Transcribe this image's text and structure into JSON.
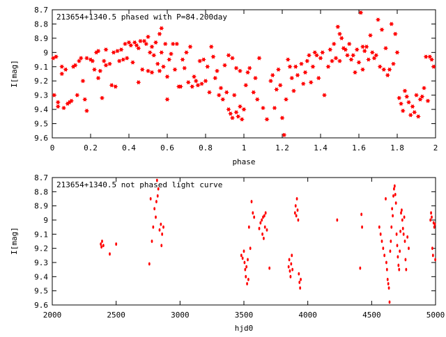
{
  "chart_data": [
    {
      "type": "scatter",
      "title": "213654+1340.5 phased with P=84.200day",
      "xlabel": "phase",
      "ylabel": "I[mag]",
      "xlim": [
        0,
        2
      ],
      "ylim": [
        9.6,
        8.7
      ],
      "y_inverted": true,
      "grid": false,
      "marker": "star",
      "color": "#ff0000",
      "x_ticks": [
        0,
        0.2,
        0.4,
        0.6,
        0.8,
        1,
        1.2,
        1.4,
        1.6,
        1.8,
        2
      ],
      "x_tick_labels": [
        "0",
        "0.2",
        "0.4",
        "0.6",
        "0.8",
        "1",
        "1.2",
        "1.4",
        "1.6",
        "1.8",
        "2"
      ],
      "y_ticks": [
        8.7,
        8.8,
        8.9,
        9,
        9.1,
        9.2,
        9.3,
        9.4,
        9.5,
        9.6
      ],
      "y_tick_labels": [
        "8.7",
        "8.8",
        "8.9",
        "9",
        "9.1",
        "9.2",
        "9.3",
        "9.4",
        "9.5",
        "9.6"
      ],
      "points": [
        [
          0.005,
          9.04
        ],
        [
          0.02,
          9.03
        ],
        [
          0.01,
          9.3
        ],
        [
          0.03,
          9.35
        ],
        [
          0.03,
          9.38
        ],
        [
          0.05,
          9.1
        ],
        [
          0.05,
          9.15
        ],
        [
          0.06,
          9.39
        ],
        [
          0.07,
          9.12
        ],
        [
          0.08,
          9.36
        ],
        [
          0.09,
          9.35
        ],
        [
          0.1,
          9.34
        ],
        [
          0.11,
          9.1
        ],
        [
          0.12,
          9.09
        ],
        [
          0.13,
          9.3
        ],
        [
          0.14,
          9.06
        ],
        [
          0.15,
          9.04
        ],
        [
          0.16,
          9.2
        ],
        [
          0.17,
          9.33
        ],
        [
          0.18,
          9.04
        ],
        [
          0.18,
          9.41
        ],
        [
          0.2,
          9.05
        ],
        [
          0.21,
          9.06
        ],
        [
          0.22,
          9.12
        ],
        [
          0.23,
          9.0
        ],
        [
          0.24,
          8.99
        ],
        [
          0.24,
          9.18
        ],
        [
          0.25,
          9.13
        ],
        [
          0.26,
          9.32
        ],
        [
          0.27,
          9.06
        ],
        [
          0.28,
          9.09
        ],
        [
          0.28,
          8.98
        ],
        [
          0.3,
          9.08
        ],
        [
          0.31,
          9.23
        ],
        [
          0.32,
          9.0
        ],
        [
          0.33,
          9.24
        ],
        [
          0.34,
          8.99
        ],
        [
          0.35,
          9.06
        ],
        [
          0.36,
          8.98
        ],
        [
          0.37,
          9.05
        ],
        [
          0.38,
          8.94
        ],
        [
          0.39,
          9.04
        ],
        [
          0.4,
          8.93
        ],
        [
          0.41,
          8.95
        ],
        [
          0.42,
          9.07
        ],
        [
          0.43,
          8.93
        ],
        [
          0.44,
          8.95
        ],
        [
          0.45,
          8.97
        ],
        [
          0.45,
          9.21
        ],
        [
          0.46,
          8.92
        ],
        [
          0.47,
          9.12
        ],
        [
          0.48,
          8.92
        ],
        [
          0.49,
          8.94
        ],
        [
          0.5,
          8.89
        ],
        [
          0.5,
          9.13
        ],
        [
          0.51,
          9.0
        ],
        [
          0.52,
          9.14
        ],
        [
          0.52,
          8.96
        ],
        [
          0.53,
          9.02
        ],
        [
          0.54,
          8.93
        ],
        [
          0.55,
          9.08
        ],
        [
          0.56,
          9.13
        ],
        [
          0.56,
          8.87
        ],
        [
          0.57,
          9.0
        ],
        [
          0.57,
          8.83
        ],
        [
          0.58,
          9.1
        ],
        [
          0.59,
          8.94
        ],
        [
          0.6,
          9.17
        ],
        [
          0.6,
          9.33
        ],
        [
          0.61,
          9.05
        ],
        [
          0.62,
          9.01
        ],
        [
          0.63,
          8.94
        ],
        [
          0.64,
          9.12
        ],
        [
          0.65,
          8.94
        ],
        [
          0.66,
          9.24
        ],
        [
          0.67,
          9.24
        ],
        [
          0.68,
          9.05
        ],
        [
          0.69,
          9.11
        ],
        [
          0.7,
          9.0
        ],
        [
          0.71,
          9.21
        ],
        [
          0.72,
          8.96
        ],
        [
          0.73,
          9.24
        ],
        [
          0.74,
          9.17
        ],
        [
          0.75,
          9.2
        ],
        [
          0.76,
          9.23
        ],
        [
          0.77,
          9.06
        ],
        [
          0.78,
          9.22
        ],
        [
          0.79,
          9.05
        ],
        [
          0.8,
          9.2
        ],
        [
          0.81,
          9.1
        ],
        [
          0.82,
          9.28
        ],
        [
          0.83,
          8.96
        ],
        [
          0.84,
          9.03
        ],
        [
          0.85,
          9.18
        ],
        [
          0.86,
          9.13
        ],
        [
          0.87,
          9.3
        ],
        [
          0.88,
          9.25
        ],
        [
          0.89,
          9.33
        ],
        [
          0.9,
          9.09
        ],
        [
          0.91,
          9.28
        ],
        [
          0.92,
          9.02
        ],
        [
          0.92,
          9.4
        ],
        [
          0.93,
          9.43
        ],
        [
          0.94,
          9.04
        ],
        [
          0.94,
          9.46
        ],
        [
          0.95,
          9.3
        ],
        [
          0.96,
          9.42
        ],
        [
          0.96,
          9.11
        ],
        [
          0.97,
          9.45
        ],
        [
          0.98,
          9.38
        ],
        [
          0.98,
          9.13
        ],
        [
          0.99,
          9.47
        ],
        [
          1.0,
          9.4
        ],
        [
          1.01,
          9.23
        ],
        [
          1.02,
          9.14
        ],
        [
          1.03,
          9.11
        ],
        [
          1.05,
          9.28
        ],
        [
          1.06,
          9.18
        ],
        [
          1.07,
          9.33
        ],
        [
          1.08,
          9.04
        ],
        [
          1.1,
          9.39
        ],
        [
          1.12,
          9.47
        ],
        [
          1.14,
          9.2
        ],
        [
          1.15,
          9.16
        ],
        [
          1.16,
          9.39
        ],
        [
          1.17,
          9.26
        ],
        [
          1.18,
          9.12
        ],
        [
          1.19,
          9.23
        ],
        [
          1.2,
          9.46
        ],
        [
          1.21,
          9.58
        ],
        [
          1.22,
          9.33
        ],
        [
          1.23,
          9.05
        ],
        [
          1.24,
          9.1
        ],
        [
          1.25,
          9.18
        ],
        [
          1.26,
          9.27
        ],
        [
          1.27,
          9.1
        ],
        [
          1.28,
          9.16
        ],
        [
          1.3,
          9.08
        ],
        [
          1.31,
          9.22
        ],
        [
          1.32,
          9.14
        ],
        [
          1.33,
          9.06
        ],
        [
          1.34,
          9.02
        ],
        [
          1.35,
          9.21
        ],
        [
          1.36,
          9.1
        ],
        [
          1.37,
          9.0
        ],
        [
          1.38,
          9.02
        ],
        [
          1.39,
          9.18
        ],
        [
          1.4,
          9.04
        ],
        [
          1.41,
          9.0
        ],
        [
          1.42,
          9.3
        ],
        [
          1.44,
          9.1
        ],
        [
          1.45,
          8.98
        ],
        [
          1.46,
          9.06
        ],
        [
          1.47,
          8.94
        ],
        [
          1.48,
          9.04
        ],
        [
          1.49,
          8.82
        ],
        [
          1.5,
          8.87
        ],
        [
          1.5,
          9.06
        ],
        [
          1.51,
          8.9
        ],
        [
          1.52,
          8.97
        ],
        [
          1.53,
          8.98
        ],
        [
          1.54,
          9.02
        ],
        [
          1.55,
          8.94
        ],
        [
          1.56,
          9.05
        ],
        [
          1.57,
          9.02
        ],
        [
          1.58,
          9.14
        ],
        [
          1.59,
          8.98
        ],
        [
          1.6,
          9.07
        ],
        [
          1.61,
          8.72
        ],
        [
          1.62,
          8.96
        ],
        [
          1.62,
          9.12
        ],
        [
          1.63,
          8.99
        ],
        [
          1.64,
          8.96
        ],
        [
          1.65,
          9.05
        ],
        [
          1.66,
          8.88
        ],
        [
          1.67,
          9.0
        ],
        [
          1.68,
          9.04
        ],
        [
          1.69,
          9.02
        ],
        [
          1.7,
          8.77
        ],
        [
          1.71,
          9.1
        ],
        [
          1.72,
          8.84
        ],
        [
          1.73,
          9.12
        ],
        [
          1.74,
          8.97
        ],
        [
          1.75,
          9.16
        ],
        [
          1.76,
          9.12
        ],
        [
          1.77,
          8.8
        ],
        [
          1.78,
          9.08
        ],
        [
          1.79,
          8.87
        ],
        [
          1.8,
          9.0
        ],
        [
          1.81,
          9.32
        ],
        [
          1.82,
          9.36
        ],
        [
          1.83,
          9.41
        ],
        [
          1.84,
          9.27
        ],
        [
          1.85,
          9.31
        ],
        [
          1.86,
          9.35
        ],
        [
          1.87,
          9.44
        ],
        [
          1.88,
          9.38
        ],
        [
          1.89,
          9.42
        ],
        [
          1.9,
          9.3
        ],
        [
          1.91,
          9.45
        ],
        [
          1.92,
          9.33
        ],
        [
          1.93,
          9.31
        ],
        [
          1.94,
          9.25
        ],
        [
          1.95,
          9.03
        ],
        [
          1.96,
          9.34
        ],
        [
          1.97,
          9.03
        ],
        [
          1.98,
          9.05
        ],
        [
          1.99,
          9.1
        ]
      ]
    },
    {
      "type": "scatter",
      "title": "213654+1340.5 not phased light curve",
      "xlabel": "hjd0",
      "ylabel": "I[mag]",
      "xlim": [
        2000,
        5000
      ],
      "ylim": [
        9.6,
        8.7
      ],
      "y_inverted": true,
      "grid": false,
      "marker": "dot",
      "color": "#ff0000",
      "x_ticks": [
        2000,
        2500,
        3000,
        3500,
        4000,
        4500,
        5000
      ],
      "x_tick_labels": [
        "2000",
        "2500",
        "3000",
        "3500",
        "4000",
        "4500",
        "5000"
      ],
      "y_ticks": [
        8.7,
        8.8,
        8.9,
        9,
        9.1,
        9.2,
        9.3,
        9.4,
        9.5,
        9.6
      ],
      "y_tick_labels": [
        "8.7",
        "8.8",
        "8.9",
        "9",
        "9.1",
        "9.2",
        "9.3",
        "9.4",
        "9.5",
        "9.6"
      ],
      "points": [
        [
          2380,
          9.17
        ],
        [
          2385,
          9.19
        ],
        [
          2390,
          9.15
        ],
        [
          2400,
          9.18
        ],
        [
          2450,
          9.24
        ],
        [
          2500,
          9.17
        ],
        [
          2760,
          9.31
        ],
        [
          2770,
          8.85
        ],
        [
          2780,
          9.15
        ],
        [
          2790,
          9.05
        ],
        [
          2800,
          8.92
        ],
        [
          2810,
          8.98
        ],
        [
          2815,
          8.87
        ],
        [
          2820,
          8.72
        ],
        [
          2825,
          8.83
        ],
        [
          2830,
          8.78
        ],
        [
          2840,
          9.07
        ],
        [
          2850,
          9.03
        ],
        [
          2855,
          9.18
        ],
        [
          2860,
          9.1
        ],
        [
          2870,
          9.05
        ],
        [
          3480,
          9.25
        ],
        [
          3490,
          9.27
        ],
        [
          3500,
          9.22
        ],
        [
          3505,
          9.3
        ],
        [
          3510,
          9.35
        ],
        [
          3515,
          9.4
        ],
        [
          3520,
          9.33
        ],
        [
          3525,
          9.45
        ],
        [
          3530,
          9.28
        ],
        [
          3535,
          9.42
        ],
        [
          3540,
          9.05
        ],
        [
          3550,
          9.2
        ],
        [
          3560,
          8.87
        ],
        [
          3570,
          8.95
        ],
        [
          3580,
          8.98
        ],
        [
          3620,
          9.06
        ],
        [
          3630,
          9.02
        ],
        [
          3640,
          9.0
        ],
        [
          3645,
          9.1
        ],
        [
          3650,
          8.98
        ],
        [
          3655,
          9.13
        ],
        [
          3660,
          8.97
        ],
        [
          3665,
          9.05
        ],
        [
          3670,
          8.95
        ],
        [
          3680,
          9.07
        ],
        [
          3700,
          9.34
        ],
        [
          3850,
          9.33
        ],
        [
          3855,
          9.28
        ],
        [
          3860,
          9.36
        ],
        [
          3865,
          9.4
        ],
        [
          3870,
          9.31
        ],
        [
          3875,
          9.25
        ],
        [
          3880,
          9.35
        ],
        [
          3900,
          8.95
        ],
        [
          3905,
          8.9
        ],
        [
          3910,
          8.97
        ],
        [
          3915,
          8.85
        ],
        [
          3920,
          8.93
        ],
        [
          3925,
          9.0
        ],
        [
          3930,
          9.38
        ],
        [
          3935,
          9.44
        ],
        [
          3940,
          9.48
        ],
        [
          3945,
          9.42
        ],
        [
          4230,
          9.0
        ],
        [
          4410,
          9.34
        ],
        [
          4420,
          8.96
        ],
        [
          4425,
          9.05
        ],
        [
          4560,
          9.05
        ],
        [
          4570,
          9.1
        ],
        [
          4580,
          9.15
        ],
        [
          4590,
          9.2
        ],
        [
          4600,
          9.25
        ],
        [
          4610,
          8.85
        ],
        [
          4615,
          9.3
        ],
        [
          4620,
          9.35
        ],
        [
          4625,
          9.42
        ],
        [
          4630,
          9.45
        ],
        [
          4635,
          9.48
        ],
        [
          4640,
          9.58
        ],
        [
          4645,
          9.22
        ],
        [
          4650,
          9.15
        ],
        [
          4655,
          9.05
        ],
        [
          4660,
          8.92
        ],
        [
          4665,
          8.97
        ],
        [
          4670,
          8.83
        ],
        [
          4675,
          8.78
        ],
        [
          4680,
          8.76
        ],
        [
          4685,
          8.82
        ],
        [
          4690,
          8.88
        ],
        [
          4695,
          9.1
        ],
        [
          4700,
          9.18
        ],
        [
          4705,
          9.26
        ],
        [
          4710,
          9.32
        ],
        [
          4715,
          9.35
        ],
        [
          4720,
          9.22
        ],
        [
          4725,
          9.08
        ],
        [
          4730,
          8.95
        ],
        [
          4735,
          8.93
        ],
        [
          4740,
          9.0
        ],
        [
          4745,
          9.06
        ],
        [
          4750,
          9.1
        ],
        [
          4755,
          8.98
        ],
        [
          4760,
          9.15
        ],
        [
          4765,
          9.28
        ],
        [
          4770,
          9.35
        ],
        [
          4780,
          9.12
        ],
        [
          4790,
          9.2
        ],
        [
          4960,
          9.0
        ],
        [
          4965,
          8.95
        ],
        [
          4970,
          8.98
        ],
        [
          4975,
          9.2
        ],
        [
          4980,
          9.25
        ],
        [
          4985,
          9.02
        ],
        [
          4990,
          9.05
        ],
        [
          4995,
          9.03
        ],
        [
          4998,
          9.28
        ]
      ]
    }
  ]
}
